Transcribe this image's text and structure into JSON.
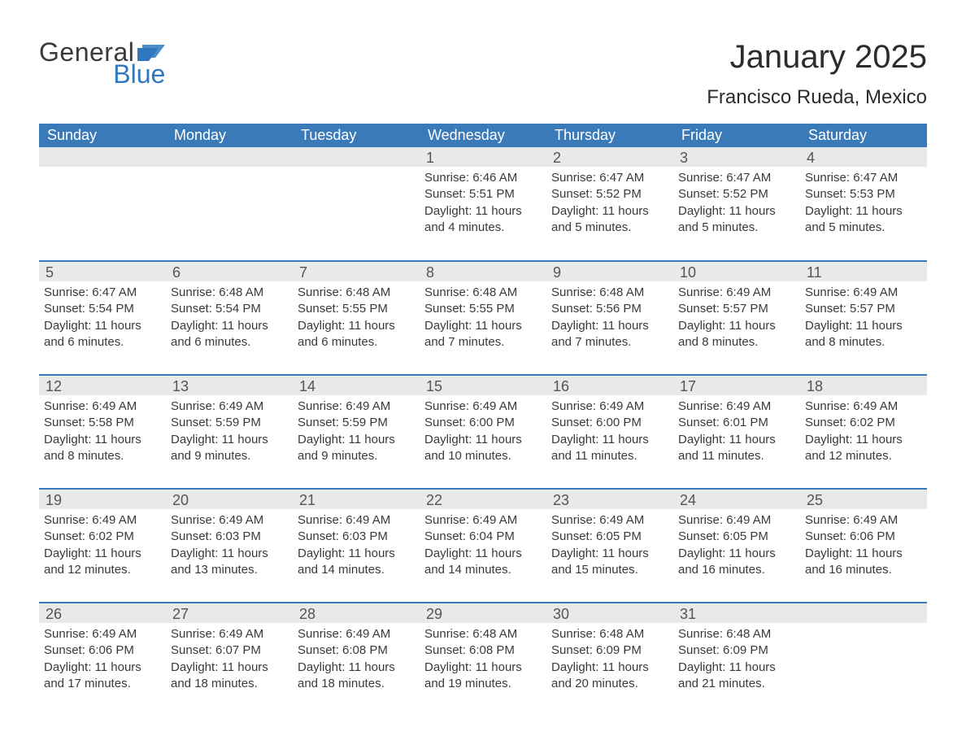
{
  "colors": {
    "header_bg": "#3b7ab8",
    "header_text": "#ffffff",
    "daynum_bg": "#e9e9e9",
    "daynum_text": "#555555",
    "body_text": "#3a3a3a",
    "divider": "#3b7ab8",
    "logo_gray": "#3a3a3a",
    "logo_blue": "#2f78bf",
    "page_bg": "#ffffff"
  },
  "typography": {
    "title_fontsize": 40,
    "location_fontsize": 24,
    "dayheader_fontsize": 18,
    "daynum_fontsize": 18,
    "body_fontsize": 15
  },
  "logo": {
    "general": "General",
    "blue": "Blue"
  },
  "title": "January 2025",
  "location": "Francisco Rueda, Mexico",
  "day_headers": [
    "Sunday",
    "Monday",
    "Tuesday",
    "Wednesday",
    "Thursday",
    "Friday",
    "Saturday"
  ],
  "weeks": [
    [
      null,
      null,
      null,
      {
        "n": "1",
        "sr": "Sunrise: 6:46 AM",
        "ss": "Sunset: 5:51 PM",
        "d1": "Daylight: 11 hours",
        "d2": "and 4 minutes."
      },
      {
        "n": "2",
        "sr": "Sunrise: 6:47 AM",
        "ss": "Sunset: 5:52 PM",
        "d1": "Daylight: 11 hours",
        "d2": "and 5 minutes."
      },
      {
        "n": "3",
        "sr": "Sunrise: 6:47 AM",
        "ss": "Sunset: 5:52 PM",
        "d1": "Daylight: 11 hours",
        "d2": "and 5 minutes."
      },
      {
        "n": "4",
        "sr": "Sunrise: 6:47 AM",
        "ss": "Sunset: 5:53 PM",
        "d1": "Daylight: 11 hours",
        "d2": "and 5 minutes."
      }
    ],
    [
      {
        "n": "5",
        "sr": "Sunrise: 6:47 AM",
        "ss": "Sunset: 5:54 PM",
        "d1": "Daylight: 11 hours",
        "d2": "and 6 minutes."
      },
      {
        "n": "6",
        "sr": "Sunrise: 6:48 AM",
        "ss": "Sunset: 5:54 PM",
        "d1": "Daylight: 11 hours",
        "d2": "and 6 minutes."
      },
      {
        "n": "7",
        "sr": "Sunrise: 6:48 AM",
        "ss": "Sunset: 5:55 PM",
        "d1": "Daylight: 11 hours",
        "d2": "and 6 minutes."
      },
      {
        "n": "8",
        "sr": "Sunrise: 6:48 AM",
        "ss": "Sunset: 5:55 PM",
        "d1": "Daylight: 11 hours",
        "d2": "and 7 minutes."
      },
      {
        "n": "9",
        "sr": "Sunrise: 6:48 AM",
        "ss": "Sunset: 5:56 PM",
        "d1": "Daylight: 11 hours",
        "d2": "and 7 minutes."
      },
      {
        "n": "10",
        "sr": "Sunrise: 6:49 AM",
        "ss": "Sunset: 5:57 PM",
        "d1": "Daylight: 11 hours",
        "d2": "and 8 minutes."
      },
      {
        "n": "11",
        "sr": "Sunrise: 6:49 AM",
        "ss": "Sunset: 5:57 PM",
        "d1": "Daylight: 11 hours",
        "d2": "and 8 minutes."
      }
    ],
    [
      {
        "n": "12",
        "sr": "Sunrise: 6:49 AM",
        "ss": "Sunset: 5:58 PM",
        "d1": "Daylight: 11 hours",
        "d2": "and 8 minutes."
      },
      {
        "n": "13",
        "sr": "Sunrise: 6:49 AM",
        "ss": "Sunset: 5:59 PM",
        "d1": "Daylight: 11 hours",
        "d2": "and 9 minutes."
      },
      {
        "n": "14",
        "sr": "Sunrise: 6:49 AM",
        "ss": "Sunset: 5:59 PM",
        "d1": "Daylight: 11 hours",
        "d2": "and 9 minutes."
      },
      {
        "n": "15",
        "sr": "Sunrise: 6:49 AM",
        "ss": "Sunset: 6:00 PM",
        "d1": "Daylight: 11 hours",
        "d2": "and 10 minutes."
      },
      {
        "n": "16",
        "sr": "Sunrise: 6:49 AM",
        "ss": "Sunset: 6:00 PM",
        "d1": "Daylight: 11 hours",
        "d2": "and 11 minutes."
      },
      {
        "n": "17",
        "sr": "Sunrise: 6:49 AM",
        "ss": "Sunset: 6:01 PM",
        "d1": "Daylight: 11 hours",
        "d2": "and 11 minutes."
      },
      {
        "n": "18",
        "sr": "Sunrise: 6:49 AM",
        "ss": "Sunset: 6:02 PM",
        "d1": "Daylight: 11 hours",
        "d2": "and 12 minutes."
      }
    ],
    [
      {
        "n": "19",
        "sr": "Sunrise: 6:49 AM",
        "ss": "Sunset: 6:02 PM",
        "d1": "Daylight: 11 hours",
        "d2": "and 12 minutes."
      },
      {
        "n": "20",
        "sr": "Sunrise: 6:49 AM",
        "ss": "Sunset: 6:03 PM",
        "d1": "Daylight: 11 hours",
        "d2": "and 13 minutes."
      },
      {
        "n": "21",
        "sr": "Sunrise: 6:49 AM",
        "ss": "Sunset: 6:03 PM",
        "d1": "Daylight: 11 hours",
        "d2": "and 14 minutes."
      },
      {
        "n": "22",
        "sr": "Sunrise: 6:49 AM",
        "ss": "Sunset: 6:04 PM",
        "d1": "Daylight: 11 hours",
        "d2": "and 14 minutes."
      },
      {
        "n": "23",
        "sr": "Sunrise: 6:49 AM",
        "ss": "Sunset: 6:05 PM",
        "d1": "Daylight: 11 hours",
        "d2": "and 15 minutes."
      },
      {
        "n": "24",
        "sr": "Sunrise: 6:49 AM",
        "ss": "Sunset: 6:05 PM",
        "d1": "Daylight: 11 hours",
        "d2": "and 16 minutes."
      },
      {
        "n": "25",
        "sr": "Sunrise: 6:49 AM",
        "ss": "Sunset: 6:06 PM",
        "d1": "Daylight: 11 hours",
        "d2": "and 16 minutes."
      }
    ],
    [
      {
        "n": "26",
        "sr": "Sunrise: 6:49 AM",
        "ss": "Sunset: 6:06 PM",
        "d1": "Daylight: 11 hours",
        "d2": "and 17 minutes."
      },
      {
        "n": "27",
        "sr": "Sunrise: 6:49 AM",
        "ss": "Sunset: 6:07 PM",
        "d1": "Daylight: 11 hours",
        "d2": "and 18 minutes."
      },
      {
        "n": "28",
        "sr": "Sunrise: 6:49 AM",
        "ss": "Sunset: 6:08 PM",
        "d1": "Daylight: 11 hours",
        "d2": "and 18 minutes."
      },
      {
        "n": "29",
        "sr": "Sunrise: 6:48 AM",
        "ss": "Sunset: 6:08 PM",
        "d1": "Daylight: 11 hours",
        "d2": "and 19 minutes."
      },
      {
        "n": "30",
        "sr": "Sunrise: 6:48 AM",
        "ss": "Sunset: 6:09 PM",
        "d1": "Daylight: 11 hours",
        "d2": "and 20 minutes."
      },
      {
        "n": "31",
        "sr": "Sunrise: 6:48 AM",
        "ss": "Sunset: 6:09 PM",
        "d1": "Daylight: 11 hours",
        "d2": "and 21 minutes."
      },
      null
    ]
  ]
}
